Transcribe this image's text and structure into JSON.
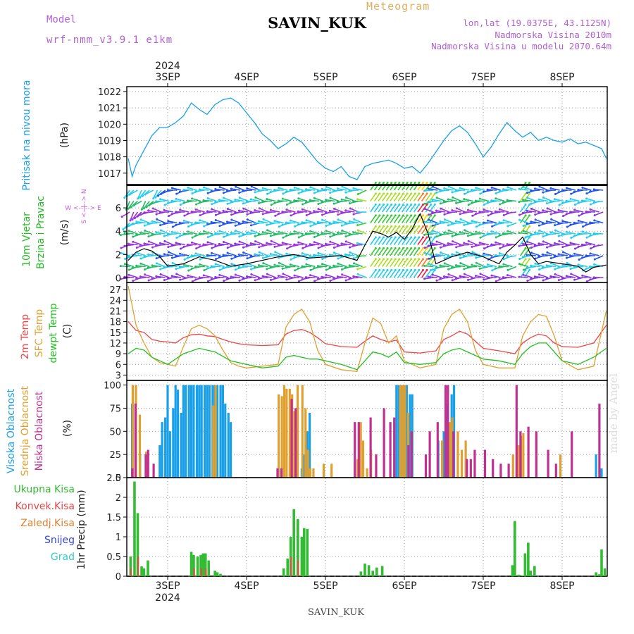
{
  "header": {
    "title": "SAVIN_KUK",
    "model_label": "Model",
    "model_value": "wrf-nmm_v3.9.1 e1km",
    "meteogram_label": "Meteogram",
    "lonlat": "lon,lat (19.0375E, 43.1125N)",
    "elevation": "Nadmorska Visina 2010m",
    "model_elevation": "Nadmorska Visina u modelu 2070.64m"
  },
  "footer": {
    "station": "SAVIN_KUK",
    "watermark": "made by Angel"
  },
  "colors": {
    "pressure": "#1aa0e8",
    "wind_label": "#22bb22",
    "wind_dir": "#c060e0",
    "t2m": "#ee4444",
    "tsfc": "#e0a030",
    "dewpt": "#22c022",
    "high_cloud": "#1aa0e8",
    "mid_cloud": "#e0a030",
    "low_cloud": "#c03090",
    "total_precip": "#33bb33",
    "conv_precip": "#ee4444",
    "frozen_precip": "#e08030",
    "snow": "#3344dd",
    "hail": "#33cccc"
  },
  "time_axis": {
    "year": "2024",
    "days": [
      "3SEP",
      "4SEP",
      "5SEP",
      "6SEP",
      "7SEP",
      "8SEP"
    ],
    "start_day_offset": -0.5,
    "end_day_offset": 5.56
  },
  "chart_data": [
    {
      "type": "line",
      "id": "pressure",
      "ylabel": "Pritisak na nivou mora",
      "unit": "(hPa)",
      "ylim": [
        1016.3,
        1022.3
      ],
      "yticks": [
        1017,
        1018,
        1019,
        1020,
        1021,
        1022
      ],
      "series": [
        {
          "name": "Pritisak na nivou mora",
          "color": "#1aa0e8",
          "x": [
            -0.5,
            -0.45,
            -0.4,
            -0.3,
            -0.2,
            -0.1,
            0.0,
            0.1,
            0.2,
            0.3,
            0.4,
            0.5,
            0.6,
            0.7,
            0.8,
            0.9,
            1.0,
            1.1,
            1.2,
            1.3,
            1.4,
            1.5,
            1.6,
            1.7,
            1.8,
            1.9,
            2.0,
            2.1,
            2.2,
            2.3,
            2.4,
            2.5,
            2.6,
            2.7,
            2.8,
            2.9,
            3.0,
            3.1,
            3.2,
            3.3,
            3.4,
            3.5,
            3.6,
            3.7,
            3.8,
            3.9,
            4.0,
            4.1,
            4.2,
            4.3,
            4.4,
            4.5,
            4.6,
            4.7,
            4.8,
            4.9,
            5.0,
            5.1,
            5.2,
            5.3,
            5.4,
            5.5,
            5.56
          ],
          "y": [
            1017.9,
            1016.8,
            1017.5,
            1018.4,
            1019.3,
            1019.8,
            1019.8,
            1020.1,
            1020.5,
            1021.3,
            1020.9,
            1020.6,
            1021.2,
            1021.5,
            1021.6,
            1021.3,
            1020.7,
            1020.1,
            1019.4,
            1019.0,
            1018.5,
            1018.8,
            1019.2,
            1018.9,
            1018.3,
            1017.7,
            1017.3,
            1017.1,
            1017.4,
            1016.8,
            1016.6,
            1017.4,
            1017.6,
            1017.7,
            1017.8,
            1017.6,
            1017.3,
            1017.4,
            1017.0,
            1017.6,
            1018.3,
            1019.0,
            1019.6,
            1019.9,
            1019.5,
            1018.8,
            1018.0,
            1018.6,
            1019.4,
            1020.1,
            1019.6,
            1019.2,
            1019.5,
            1019.0,
            1019.2,
            1019.0,
            1018.9,
            1019.1,
            1018.8,
            1018.9,
            1018.7,
            1018.5,
            1017.9
          ]
        }
      ]
    },
    {
      "type": "line",
      "id": "wind",
      "ylabel": "10m Vjetar Brzina i Pravac",
      "unit": "(m/s)",
      "direction_key": "W <--|--> E / S <--|--> N",
      "ylim": [
        -0.4,
        8.0
      ],
      "yticks": [
        0,
        2,
        4,
        6
      ],
      "series": [
        {
          "name": "10m Vjetar Brzina",
          "color": "#000000",
          "x": [
            -0.5,
            -0.4,
            -0.3,
            -0.2,
            -0.1,
            0.0,
            0.2,
            0.4,
            0.6,
            0.8,
            1.0,
            1.2,
            1.4,
            1.6,
            1.8,
            2.0,
            2.2,
            2.4,
            2.5,
            2.6,
            2.7,
            2.8,
            2.9,
            3.0,
            3.1,
            3.2,
            3.3,
            3.4,
            3.5,
            3.6,
            3.8,
            4.0,
            4.2,
            4.3,
            4.4,
            4.5,
            4.6,
            4.7,
            4.8,
            5.0,
            5.2,
            5.3,
            5.4,
            5.56
          ],
          "y": [
            1.5,
            2.2,
            2.5,
            2.3,
            1.8,
            1.0,
            1.2,
            1.8,
            1.5,
            1.0,
            1.2,
            1.5,
            1.8,
            2.0,
            1.7,
            1.8,
            1.9,
            1.5,
            2.8,
            4.0,
            3.8,
            3.5,
            3.9,
            3.3,
            4.2,
            5.5,
            3.8,
            1.2,
            1.5,
            1.8,
            2.2,
            1.8,
            1.2,
            2.2,
            2.8,
            3.5,
            2.0,
            1.2,
            1.4,
            1.2,
            1.0,
            0.5,
            0.9,
            1.1
          ]
        }
      ]
    },
    {
      "type": "line",
      "id": "temperature",
      "ylabel": "2m Temp / SFC Temp / dewpt Temp",
      "unit": "(C)",
      "ylim": [
        1.5,
        29.0
      ],
      "yticks": [
        3,
        6,
        9,
        12,
        15,
        18,
        21,
        24,
        27
      ],
      "series": [
        {
          "name": "2m Temp",
          "color": "#ee4444",
          "x": [
            -0.5,
            -0.4,
            -0.3,
            -0.2,
            -0.1,
            0.0,
            0.1,
            0.2,
            0.3,
            0.4,
            0.5,
            0.6,
            0.7,
            0.8,
            0.9,
            1.0,
            1.2,
            1.4,
            1.5,
            1.6,
            1.7,
            1.8,
            1.9,
            2.0,
            2.2,
            2.4,
            2.5,
            2.6,
            2.7,
            2.8,
            2.9,
            3.0,
            3.2,
            3.4,
            3.5,
            3.6,
            3.7,
            3.8,
            3.9,
            4.0,
            4.2,
            4.4,
            4.5,
            4.6,
            4.7,
            4.8,
            4.9,
            5.0,
            5.2,
            5.4,
            5.56
          ],
          "y": [
            18.0,
            15.5,
            15.0,
            13.0,
            12.5,
            12.3,
            12.0,
            13.5,
            14.3,
            14.5,
            14.0,
            13.8,
            13.0,
            12.3,
            11.8,
            11.5,
            11.3,
            11.5,
            14.5,
            15.5,
            15.8,
            15.0,
            13.5,
            11.8,
            11.0,
            10.8,
            12.5,
            14.0,
            13.0,
            12.3,
            12.8,
            9.5,
            9.2,
            9.8,
            13.0,
            14.0,
            15.3,
            14.5,
            12.5,
            10.5,
            9.8,
            9.0,
            12.0,
            13.5,
            14.5,
            14.0,
            12.0,
            11.0,
            10.8,
            12.0,
            17.0
          ]
        },
        {
          "name": "SFC Temp",
          "color": "#e0a030",
          "x": [
            -0.5,
            -0.4,
            -0.3,
            -0.2,
            -0.1,
            0.0,
            0.1,
            0.2,
            0.3,
            0.4,
            0.5,
            0.6,
            0.7,
            0.8,
            0.9,
            1.0,
            1.2,
            1.4,
            1.5,
            1.6,
            1.7,
            1.8,
            1.9,
            2.0,
            2.2,
            2.4,
            2.5,
            2.6,
            2.7,
            2.8,
            2.9,
            3.0,
            3.2,
            3.4,
            3.5,
            3.6,
            3.7,
            3.8,
            3.9,
            4.0,
            4.2,
            4.4,
            4.5,
            4.6,
            4.7,
            4.8,
            4.9,
            5.0,
            5.2,
            5.4,
            5.56
          ],
          "y": [
            28.0,
            17.0,
            12.0,
            8.0,
            6.5,
            6.0,
            5.5,
            11.0,
            16.0,
            17.0,
            16.0,
            14.0,
            10.0,
            6.5,
            5.5,
            5.0,
            5.5,
            6.0,
            16.5,
            20.0,
            21.5,
            18.0,
            10.0,
            6.0,
            4.5,
            4.0,
            12.0,
            19.0,
            17.5,
            12.0,
            14.0,
            7.0,
            5.0,
            6.0,
            16.0,
            20.0,
            21.5,
            18.0,
            10.0,
            6.0,
            5.0,
            5.0,
            14.0,
            18.0,
            20.0,
            19.5,
            14.0,
            7.0,
            4.5,
            5.5,
            21.0
          ]
        },
        {
          "name": "dewpt Temp",
          "color": "#22c022",
          "x": [
            -0.5,
            -0.4,
            -0.3,
            -0.2,
            -0.1,
            0.0,
            0.2,
            0.4,
            0.6,
            0.8,
            1.0,
            1.2,
            1.4,
            1.5,
            1.6,
            1.7,
            1.8,
            1.9,
            2.0,
            2.2,
            2.4,
            2.5,
            2.6,
            2.7,
            2.8,
            2.9,
            3.0,
            3.2,
            3.4,
            3.5,
            3.6,
            3.7,
            3.8,
            3.9,
            4.0,
            4.2,
            4.4,
            4.5,
            4.6,
            4.7,
            4.8,
            4.9,
            5.0,
            5.2,
            5.4,
            5.56
          ],
          "y": [
            9.0,
            10.5,
            10.0,
            8.0,
            7.0,
            6.0,
            9.0,
            10.5,
            9.5,
            7.0,
            6.0,
            5.0,
            5.5,
            8.0,
            8.5,
            8.0,
            7.5,
            7.5,
            7.0,
            6.0,
            4.5,
            7.0,
            9.5,
            9.0,
            8.0,
            9.5,
            6.5,
            6.0,
            6.5,
            9.0,
            10.0,
            10.5,
            9.5,
            8.5,
            7.5,
            7.0,
            6.0,
            9.0,
            11.0,
            12.0,
            12.0,
            9.5,
            7.0,
            6.0,
            8.0,
            10.5
          ]
        }
      ]
    },
    {
      "type": "bar",
      "id": "clouds",
      "ylabel": "Visoka Oblacnost / Srednja Oblacnost / Niska Oblacnost",
      "unit": "(%)",
      "ylim": [
        0,
        105
      ],
      "yticks": [
        0,
        25,
        50,
        75,
        100
      ],
      "series": [
        {
          "name": "Visoka Oblacnost",
          "color": "#1aa0e8",
          "x": [
            -0.45,
            -0.35,
            -0.1,
            -0.07,
            -0.03,
            0.0,
            0.03,
            0.07,
            0.1,
            0.13,
            0.17,
            0.2,
            0.23,
            0.27,
            0.3,
            0.33,
            0.37,
            0.4,
            0.43,
            0.47,
            0.5,
            0.53,
            0.57,
            0.6,
            0.63,
            0.67,
            0.7,
            0.73,
            0.77,
            0.8,
            1.7,
            1.73,
            1.77,
            1.8,
            2.9,
            2.93,
            2.97,
            3.0,
            3.03,
            3.07,
            3.1,
            3.43,
            3.5,
            3.55,
            3.6,
            3.63,
            5.43,
            5.5
          ],
          "y": [
            80,
            25,
            35,
            60,
            65,
            100,
            50,
            75,
            100,
            95,
            70,
            100,
            100,
            100,
            100,
            100,
            100,
            100,
            100,
            100,
            100,
            100,
            100,
            100,
            100,
            100,
            100,
            80,
            70,
            60,
            10,
            25,
            50,
            70,
            100,
            100,
            100,
            100,
            100,
            90,
            90,
            40,
            50,
            80,
            90,
            100,
            25,
            10
          ]
        },
        {
          "name": "Srednja Oblacnost",
          "color": "#e0a030",
          "x": [
            -0.42,
            -0.38,
            -0.33,
            -0.25,
            0.6,
            0.63,
            1.43,
            1.47,
            1.5,
            1.53,
            1.57,
            1.6,
            1.63,
            1.67,
            1.73,
            1.77,
            1.8,
            1.83,
            1.87,
            2.0,
            2.1,
            2.43,
            2.47,
            2.5,
            2.55,
            2.6,
            2.97,
            3.0,
            3.03,
            3.07,
            3.5,
            3.6,
            3.63,
            3.7,
            3.75,
            3.8,
            4.4,
            4.47,
            4.5,
            4.53,
            5.0
          ],
          "y": [
            100,
            100,
            68,
            28,
            78,
            100,
            90,
            88,
            100,
            96,
            96,
            90,
            72,
            100,
            100,
            75,
            30,
            10,
            10,
            15,
            15,
            20,
            60,
            40,
            10,
            30,
            100,
            100,
            100,
            70,
            40,
            60,
            65,
            50,
            30,
            40,
            25,
            35,
            45,
            48,
            25
          ]
        },
        {
          "name": "Niska Oblacnost",
          "color": "#c03090",
          "x": [
            -0.47,
            -0.43,
            -0.3,
            -0.27,
            -0.2,
            1.37,
            1.42,
            1.55,
            1.6,
            2.35,
            2.4,
            2.55,
            2.62,
            2.72,
            2.8,
            2.85,
            3.03,
            3.07,
            3.25,
            3.3,
            3.4,
            3.5,
            3.53,
            3.6,
            3.77,
            3.82,
            3.87,
            4.0,
            4.1,
            4.2,
            4.3,
            4.4,
            4.45,
            4.55,
            4.65,
            4.8,
            4.9,
            5.1,
            5.45
          ],
          "y": [
            10,
            80,
            25,
            30,
            15,
            10,
            10,
            85,
            75,
            60,
            60,
            65,
            25,
            75,
            60,
            65,
            35,
            50,
            25,
            50,
            60,
            100,
            100,
            50,
            20,
            20,
            30,
            30,
            20,
            15,
            15,
            100,
            50,
            55,
            50,
            30,
            15,
            50,
            80
          ]
        }
      ]
    },
    {
      "type": "bar",
      "id": "precipitation",
      "ylabel": "1hr Precip (mm)",
      "unit": "(mm)",
      "ylim": [
        0,
        2.5
      ],
      "yticks": [
        0,
        0.5,
        1,
        1.5,
        2,
        2.5
      ],
      "legend": [
        "Ukupna Kisa",
        "Konvek.Kisa",
        "Zaledj.Kisa",
        "Snijeg",
        "Grad"
      ],
      "series": [
        {
          "name": "Ukupna Kisa",
          "color": "#33bb33",
          "x": [
            -0.47,
            -0.42,
            -0.38,
            -0.33,
            -0.3,
            -0.25,
            0.3,
            0.33,
            0.38,
            0.42,
            0.45,
            0.48,
            0.52,
            0.6,
            0.63,
            0.67,
            1.47,
            1.52,
            1.56,
            1.6,
            1.65,
            1.7,
            1.73,
            1.77,
            1.81,
            2.45,
            2.5,
            2.55,
            2.6,
            2.65,
            2.72,
            4.37,
            4.4,
            4.45,
            4.5,
            4.53,
            4.57,
            4.6,
            4.65,
            5.43,
            5.47,
            5.5,
            5.54
          ],
          "y": [
            0.5,
            2.4,
            1.6,
            0.25,
            0.2,
            0.4,
            0.62,
            0.54,
            0.5,
            0.54,
            0.58,
            0.58,
            0.4,
            0.14,
            0.1,
            0.06,
            0.2,
            0.45,
            1.0,
            1.7,
            1.45,
            1.0,
            1.22,
            1.2,
            0.0,
            0.12,
            0.32,
            0.28,
            0.14,
            0.22,
            0.26,
            0.28,
            1.4,
            0.04,
            0.02,
            0.58,
            0.85,
            0.14,
            0.26,
            0.1,
            0.05,
            0.68,
            0.2
          ]
        },
        {
          "name": "Konvek.Kisa",
          "color": "#ee4444",
          "x": [
            -0.47,
            -0.38,
            0.33,
            0.42,
            0.48,
            1.56,
            1.65
          ],
          "y": [
            0.2,
            0.5,
            0.2,
            0.2,
            0.2,
            0.5,
            0.4
          ]
        }
      ]
    }
  ]
}
